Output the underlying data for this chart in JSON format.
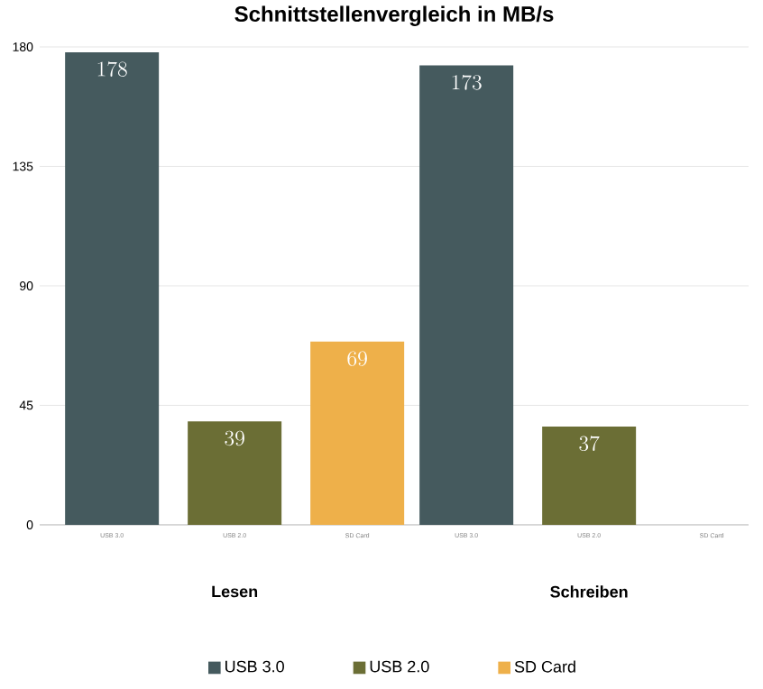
{
  "chart_data": {
    "type": "bar",
    "title": "Schnittstellenvergleich in MB/s",
    "categories": [
      "Lesen",
      "Schreiben"
    ],
    "series": [
      {
        "name": "USB 3.0",
        "color": "#455a5e",
        "values": [
          178,
          173
        ]
      },
      {
        "name": "USB 2.0",
        "color": "#6b6e35",
        "values": [
          39,
          37
        ]
      },
      {
        "name": "SD Card",
        "color": "#eeb04a",
        "values": [
          69,
          null
        ]
      }
    ],
    "ylim": [
      0,
      180
    ],
    "yticks": [
      0,
      45,
      90,
      135,
      180
    ],
    "grid": "y",
    "legend": "bottom",
    "data_labels": true
  }
}
